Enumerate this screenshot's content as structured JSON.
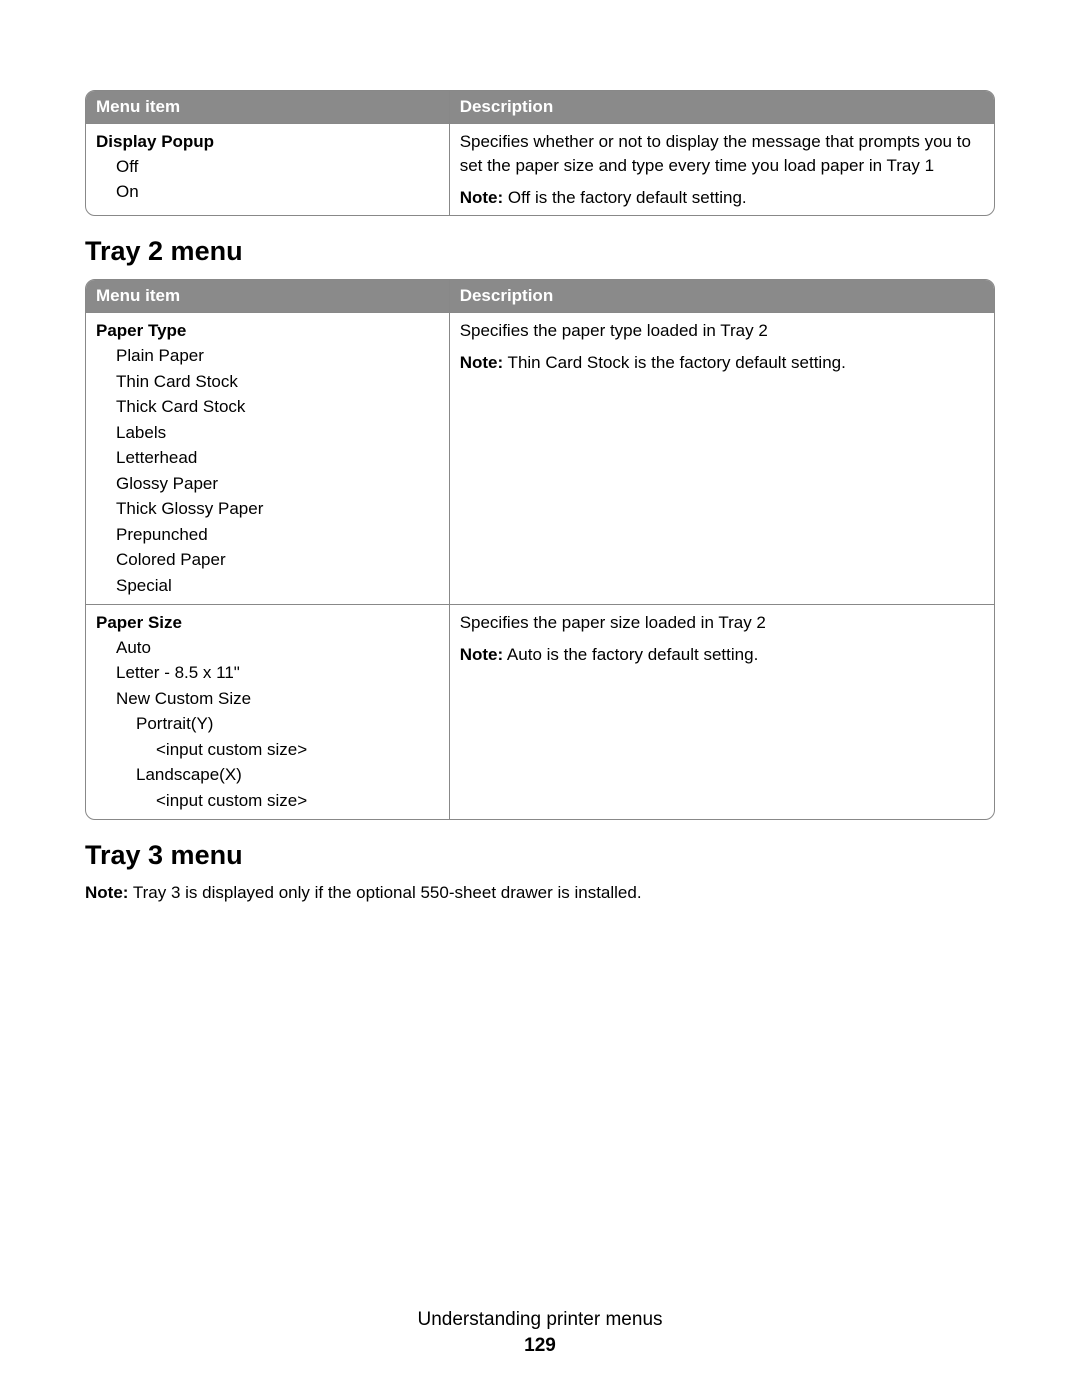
{
  "colors": {
    "header_bg": "#8a8a8a",
    "header_text": "#ffffff",
    "border": "#888888",
    "body_bg": "#ffffff",
    "text": "#000000"
  },
  "table1": {
    "headers": {
      "col1": "Menu item",
      "col2": "Description"
    },
    "row1": {
      "title": "Display Popup",
      "options": [
        "Off",
        "On"
      ],
      "description": "Specifies whether or not to display the message that prompts you to set the paper size and type every time you load paper in Tray 1",
      "note_prefix": "Note:",
      "note_text": " Off is the factory default setting."
    }
  },
  "section2": {
    "heading": "Tray 2 menu",
    "headers": {
      "col1": "Menu item",
      "col2": "Description"
    },
    "row1": {
      "title": "Paper Type",
      "options": [
        "Plain Paper",
        "Thin Card Stock",
        "Thick Card Stock",
        "Labels",
        "Letterhead",
        "Glossy Paper",
        "Thick Glossy Paper",
        "Prepunched",
        "Colored Paper",
        "Special"
      ],
      "description": "Specifies the paper type loaded in Tray 2",
      "note_prefix": "Note:",
      "note_text": " Thin Card Stock is the factory default setting."
    },
    "row2": {
      "title": "Paper Size",
      "options_flat": [
        {
          "text": "Auto",
          "level": 1
        },
        {
          "text": "Letter - 8.5 x 11\"",
          "level": 1
        },
        {
          "text": "New Custom Size",
          "level": 1
        },
        {
          "text": "Portrait(Y)",
          "level": 2
        },
        {
          "text": "<input custom size>",
          "level": 3
        },
        {
          "text": "Landscape(X)",
          "level": 2
        },
        {
          "text": "<input custom size>",
          "level": 3
        }
      ],
      "description": "Specifies the paper size loaded in Tray 2",
      "note_prefix": "Note:",
      "note_text": " Auto is the factory default setting."
    }
  },
  "section3": {
    "heading": "Tray 3 menu",
    "note_prefix": "Note:",
    "note_text": " Tray 3 is displayed only if the optional 550-sheet drawer is installed."
  },
  "footer": {
    "title": "Understanding printer menus",
    "page": "129"
  }
}
